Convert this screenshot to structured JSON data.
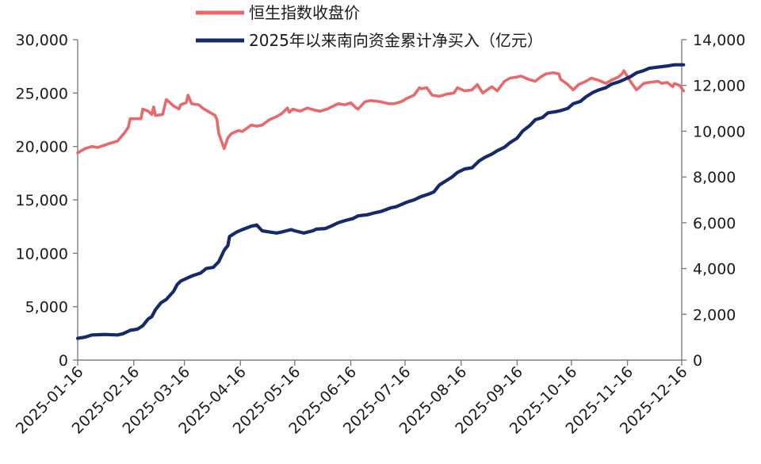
{
  "chart_data": {
    "type": "line",
    "title": "",
    "xlabel": "",
    "ylabel": "",
    "y2label": "",
    "legend_position": "top",
    "grid": false,
    "x_ticks": [
      "2025-01-16",
      "2025-02-16",
      "2025-03-16",
      "2025-04-16",
      "2025-05-16",
      "2025-06-16",
      "2025-07-16",
      "2025-08-16",
      "2025-09-16",
      "2025-10-16",
      "2025-11-16",
      "2025-12-16"
    ],
    "y_left": {
      "min": 0,
      "max": 30000,
      "ticks": [
        "0",
        "5,000",
        "10,000",
        "15,000",
        "20,000",
        "25,000",
        "30,000"
      ]
    },
    "y_right": {
      "min": 0,
      "max": 14000,
      "ticks": [
        "0",
        "2,000",
        "4,000",
        "6,000",
        "8,000",
        "10,000",
        "12,000",
        "14,000"
      ]
    },
    "series": [
      {
        "name": "恒生指数收盘价",
        "axis": "left",
        "color": "#e8696b",
        "points": [
          [
            "2025-01-16",
            19400
          ],
          [
            "2025-01-20",
            19800
          ],
          [
            "2025-01-24",
            20000
          ],
          [
            "2025-01-27",
            19900
          ],
          [
            "2025-02-03",
            20300
          ],
          [
            "2025-02-07",
            20500
          ],
          [
            "2025-02-11",
            21300
          ],
          [
            "2025-02-13",
            21800
          ],
          [
            "2025-02-14",
            22600
          ],
          [
            "2025-02-17",
            22600
          ],
          [
            "2025-02-20",
            22600
          ],
          [
            "2025-02-21",
            23500
          ],
          [
            "2025-02-24",
            23300
          ],
          [
            "2025-02-26",
            23000
          ],
          [
            "2025-02-27",
            23700
          ],
          [
            "2025-02-28",
            22900
          ],
          [
            "2025-03-04",
            23000
          ],
          [
            "2025-03-06",
            24400
          ],
          [
            "2025-03-10",
            23800
          ],
          [
            "2025-03-13",
            23500
          ],
          [
            "2025-03-14",
            23900
          ],
          [
            "2025-03-17",
            24100
          ],
          [
            "2025-03-18",
            24800
          ],
          [
            "2025-03-20",
            24000
          ],
          [
            "2025-03-24",
            23900
          ],
          [
            "2025-03-26",
            23600
          ],
          [
            "2025-03-28",
            23400
          ],
          [
            "2025-03-31",
            23100
          ],
          [
            "2025-04-02",
            22900
          ],
          [
            "2025-04-03",
            22500
          ],
          [
            "2025-04-04",
            21200
          ],
          [
            "2025-04-07",
            19800
          ],
          [
            "2025-04-09",
            20800
          ],
          [
            "2025-04-11",
            21200
          ],
          [
            "2025-04-15",
            21500
          ],
          [
            "2025-04-17",
            21400
          ],
          [
            "2025-04-22",
            22000
          ],
          [
            "2025-04-25",
            21900
          ],
          [
            "2025-04-28",
            22000
          ],
          [
            "2025-05-02",
            22500
          ],
          [
            "2025-05-06",
            22800
          ],
          [
            "2025-05-09",
            23100
          ],
          [
            "2025-05-12",
            23600
          ],
          [
            "2025-05-13",
            23200
          ],
          [
            "2025-05-15",
            23500
          ],
          [
            "2025-05-19",
            23300
          ],
          [
            "2025-05-23",
            23600
          ],
          [
            "2025-05-27",
            23400
          ],
          [
            "2025-05-30",
            23300
          ],
          [
            "2025-06-03",
            23500
          ],
          [
            "2025-06-09",
            24000
          ],
          [
            "2025-06-13",
            23900
          ],
          [
            "2025-06-16",
            24100
          ],
          [
            "2025-06-19",
            23600
          ],
          [
            "2025-06-20",
            23500
          ],
          [
            "2025-06-24",
            24200
          ],
          [
            "2025-06-27",
            24300
          ],
          [
            "2025-07-02",
            24200
          ],
          [
            "2025-07-07",
            24000
          ],
          [
            "2025-07-10",
            24000
          ],
          [
            "2025-07-14",
            24200
          ],
          [
            "2025-07-17",
            24500
          ],
          [
            "2025-07-21",
            24800
          ],
          [
            "2025-07-24",
            25500
          ],
          [
            "2025-07-25",
            25400
          ],
          [
            "2025-07-28",
            25500
          ],
          [
            "2025-07-31",
            24800
          ],
          [
            "2025-08-04",
            24700
          ],
          [
            "2025-08-08",
            24900
          ],
          [
            "2025-08-12",
            25000
          ],
          [
            "2025-08-14",
            25500
          ],
          [
            "2025-08-18",
            25200
          ],
          [
            "2025-08-22",
            25300
          ],
          [
            "2025-08-25",
            25800
          ],
          [
            "2025-08-28",
            25000
          ],
          [
            "2025-09-02",
            25600
          ],
          [
            "2025-09-05",
            25200
          ],
          [
            "2025-09-09",
            26100
          ],
          [
            "2025-09-12",
            26400
          ],
          [
            "2025-09-16",
            26500
          ],
          [
            "2025-09-18",
            26600
          ],
          [
            "2025-09-22",
            26300
          ],
          [
            "2025-09-26",
            26100
          ],
          [
            "2025-09-29",
            26500
          ],
          [
            "2025-10-02",
            26800
          ],
          [
            "2025-10-06",
            26900
          ],
          [
            "2025-10-09",
            26800
          ],
          [
            "2025-10-10",
            26300
          ],
          [
            "2025-10-14",
            25800
          ],
          [
            "2025-10-17",
            25300
          ],
          [
            "2025-10-20",
            25800
          ],
          [
            "2025-10-24",
            26100
          ],
          [
            "2025-10-27",
            26400
          ],
          [
            "2025-10-31",
            26200
          ],
          [
            "2025-11-04",
            25900
          ],
          [
            "2025-11-07",
            26200
          ],
          [
            "2025-11-11",
            26500
          ],
          [
            "2025-11-13",
            26800
          ],
          [
            "2025-11-14",
            27100
          ],
          [
            "2025-11-18",
            26000
          ],
          [
            "2025-11-21",
            25300
          ],
          [
            "2025-11-25",
            25900
          ],
          [
            "2025-11-28",
            26000
          ],
          [
            "2025-12-03",
            26100
          ],
          [
            "2025-12-05",
            25900
          ],
          [
            "2025-12-08",
            26000
          ],
          [
            "2025-12-11",
            25600
          ],
          [
            "2025-12-12",
            25900
          ],
          [
            "2025-12-15",
            25700
          ],
          [
            "2025-12-17",
            25200
          ]
        ]
      },
      {
        "name": "2025年以来南向资金累计净买入（亿元）",
        "axis": "right",
        "color": "#142a69",
        "points": [
          [
            "2025-01-16",
            950
          ],
          [
            "2025-01-20",
            1000
          ],
          [
            "2025-01-24",
            1100
          ],
          [
            "2025-01-31",
            1120
          ],
          [
            "2025-02-07",
            1100
          ],
          [
            "2025-02-10",
            1150
          ],
          [
            "2025-02-14",
            1300
          ],
          [
            "2025-02-18",
            1350
          ],
          [
            "2025-02-21",
            1500
          ],
          [
            "2025-02-24",
            1800
          ],
          [
            "2025-02-26",
            1900
          ],
          [
            "2025-02-28",
            2200
          ],
          [
            "2025-03-03",
            2500
          ],
          [
            "2025-03-06",
            2650
          ],
          [
            "2025-03-10",
            3000
          ],
          [
            "2025-03-12",
            3300
          ],
          [
            "2025-03-14",
            3450
          ],
          [
            "2025-03-18",
            3600
          ],
          [
            "2025-03-21",
            3700
          ],
          [
            "2025-03-25",
            3800
          ],
          [
            "2025-03-28",
            4000
          ],
          [
            "2025-04-01",
            4050
          ],
          [
            "2025-04-04",
            4300
          ],
          [
            "2025-04-07",
            4800
          ],
          [
            "2025-04-08",
            4900
          ],
          [
            "2025-04-09",
            5000
          ],
          [
            "2025-04-10",
            5400
          ],
          [
            "2025-04-14",
            5600
          ],
          [
            "2025-04-17",
            5700
          ],
          [
            "2025-04-22",
            5850
          ],
          [
            "2025-04-25",
            5900
          ],
          [
            "2025-04-28",
            5650
          ],
          [
            "2025-05-02",
            5600
          ],
          [
            "2025-05-06",
            5550
          ],
          [
            "2025-05-09",
            5600
          ],
          [
            "2025-05-14",
            5700
          ],
          [
            "2025-05-16",
            5650
          ],
          [
            "2025-05-21",
            5550
          ],
          [
            "2025-05-26",
            5650
          ],
          [
            "2025-05-28",
            5720
          ],
          [
            "2025-06-02",
            5750
          ],
          [
            "2025-06-05",
            5850
          ],
          [
            "2025-06-09",
            6000
          ],
          [
            "2025-06-13",
            6100
          ],
          [
            "2025-06-17",
            6180
          ],
          [
            "2025-06-20",
            6300
          ],
          [
            "2025-06-25",
            6350
          ],
          [
            "2025-06-30",
            6450
          ],
          [
            "2025-07-03",
            6500
          ],
          [
            "2025-07-08",
            6650
          ],
          [
            "2025-07-11",
            6700
          ],
          [
            "2025-07-14",
            6800
          ],
          [
            "2025-07-17",
            6900
          ],
          [
            "2025-07-21",
            7000
          ],
          [
            "2025-07-25",
            7150
          ],
          [
            "2025-07-29",
            7250
          ],
          [
            "2025-08-01",
            7350
          ],
          [
            "2025-08-04",
            7650
          ],
          [
            "2025-08-08",
            7850
          ],
          [
            "2025-08-11",
            8000
          ],
          [
            "2025-08-14",
            8200
          ],
          [
            "2025-08-18",
            8350
          ],
          [
            "2025-08-22",
            8400
          ],
          [
            "2025-08-26",
            8700
          ],
          [
            "2025-08-29",
            8850
          ],
          [
            "2025-09-02",
            9000
          ],
          [
            "2025-09-05",
            9150
          ],
          [
            "2025-09-09",
            9300
          ],
          [
            "2025-09-12",
            9500
          ],
          [
            "2025-09-16",
            9700
          ],
          [
            "2025-09-19",
            10000
          ],
          [
            "2025-09-23",
            10250
          ],
          [
            "2025-09-26",
            10500
          ],
          [
            "2025-09-30",
            10600
          ],
          [
            "2025-10-03",
            10800
          ],
          [
            "2025-10-07",
            10850
          ],
          [
            "2025-10-10",
            10900
          ],
          [
            "2025-10-14",
            11000
          ],
          [
            "2025-10-17",
            11200
          ],
          [
            "2025-10-21",
            11300
          ],
          [
            "2025-10-24",
            11500
          ],
          [
            "2025-10-28",
            11700
          ],
          [
            "2025-10-31",
            11800
          ],
          [
            "2025-11-04",
            11900
          ],
          [
            "2025-11-07",
            12050
          ],
          [
            "2025-11-11",
            12150
          ],
          [
            "2025-11-14",
            12250
          ],
          [
            "2025-11-18",
            12400
          ],
          [
            "2025-11-21",
            12550
          ],
          [
            "2025-11-25",
            12650
          ],
          [
            "2025-11-28",
            12750
          ],
          [
            "2025-12-03",
            12800
          ],
          [
            "2025-12-08",
            12850
          ],
          [
            "2025-12-12",
            12900
          ],
          [
            "2025-12-17",
            12900
          ]
        ]
      }
    ]
  }
}
